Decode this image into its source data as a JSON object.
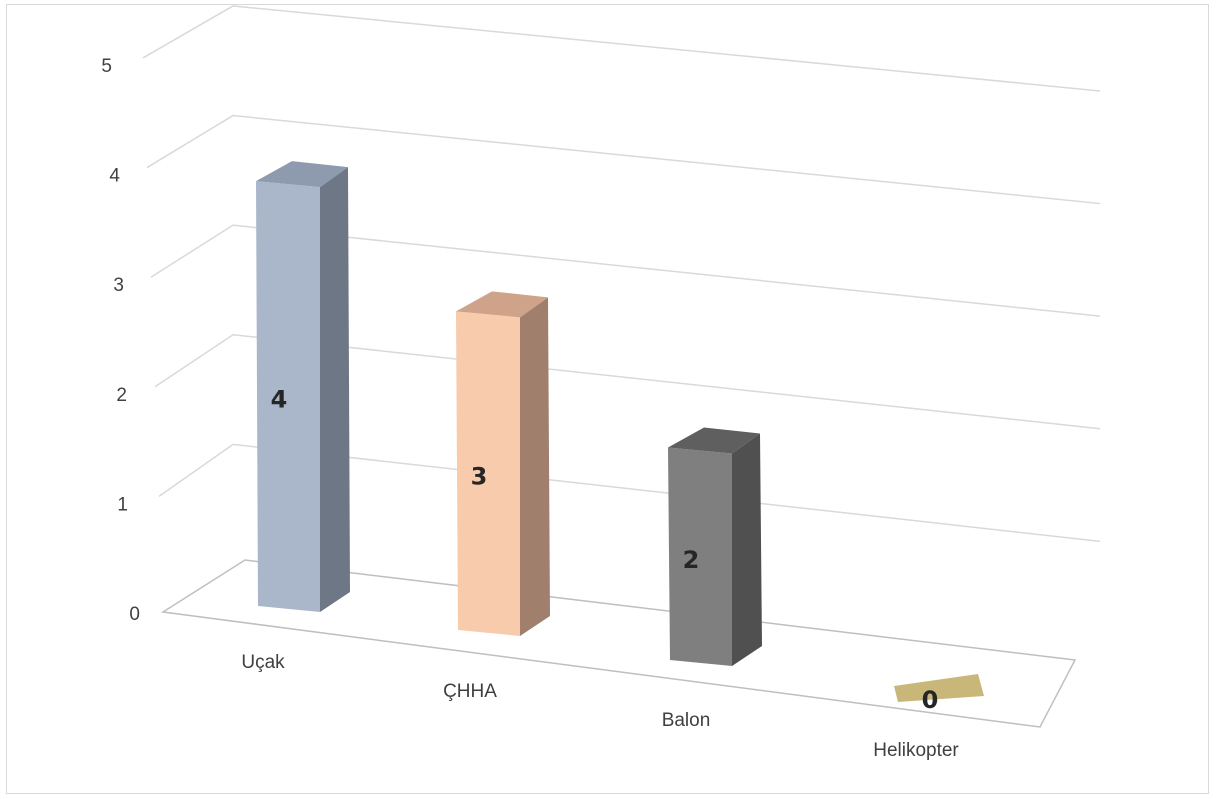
{
  "chart_data": {
    "type": "bar",
    "categories": [
      "Uçak",
      "ÇHHA",
      "Balon",
      "Helikopter"
    ],
    "values": [
      4,
      3,
      2,
      0
    ],
    "data_labels": [
      "4",
      "3",
      "2",
      "0"
    ],
    "ylim": [
      0,
      5
    ],
    "yticks": [
      "0",
      "1",
      "2",
      "3",
      "4",
      "5"
    ],
    "grid": true,
    "legend": "none",
    "colors": {
      "front": [
        "#aab7cb",
        "#f8cbad",
        "#7f7f7f",
        "#c9b77a"
      ],
      "side": [
        "#6d7786",
        "#a07f6c",
        "#505050",
        "#8f8255"
      ],
      "top": [
        "#8e9bae",
        "#cfa38a",
        "#5f5f5f",
        "#c9b77a"
      ],
      "gridline": "#d9d9d9",
      "text": "#404040"
    }
  }
}
